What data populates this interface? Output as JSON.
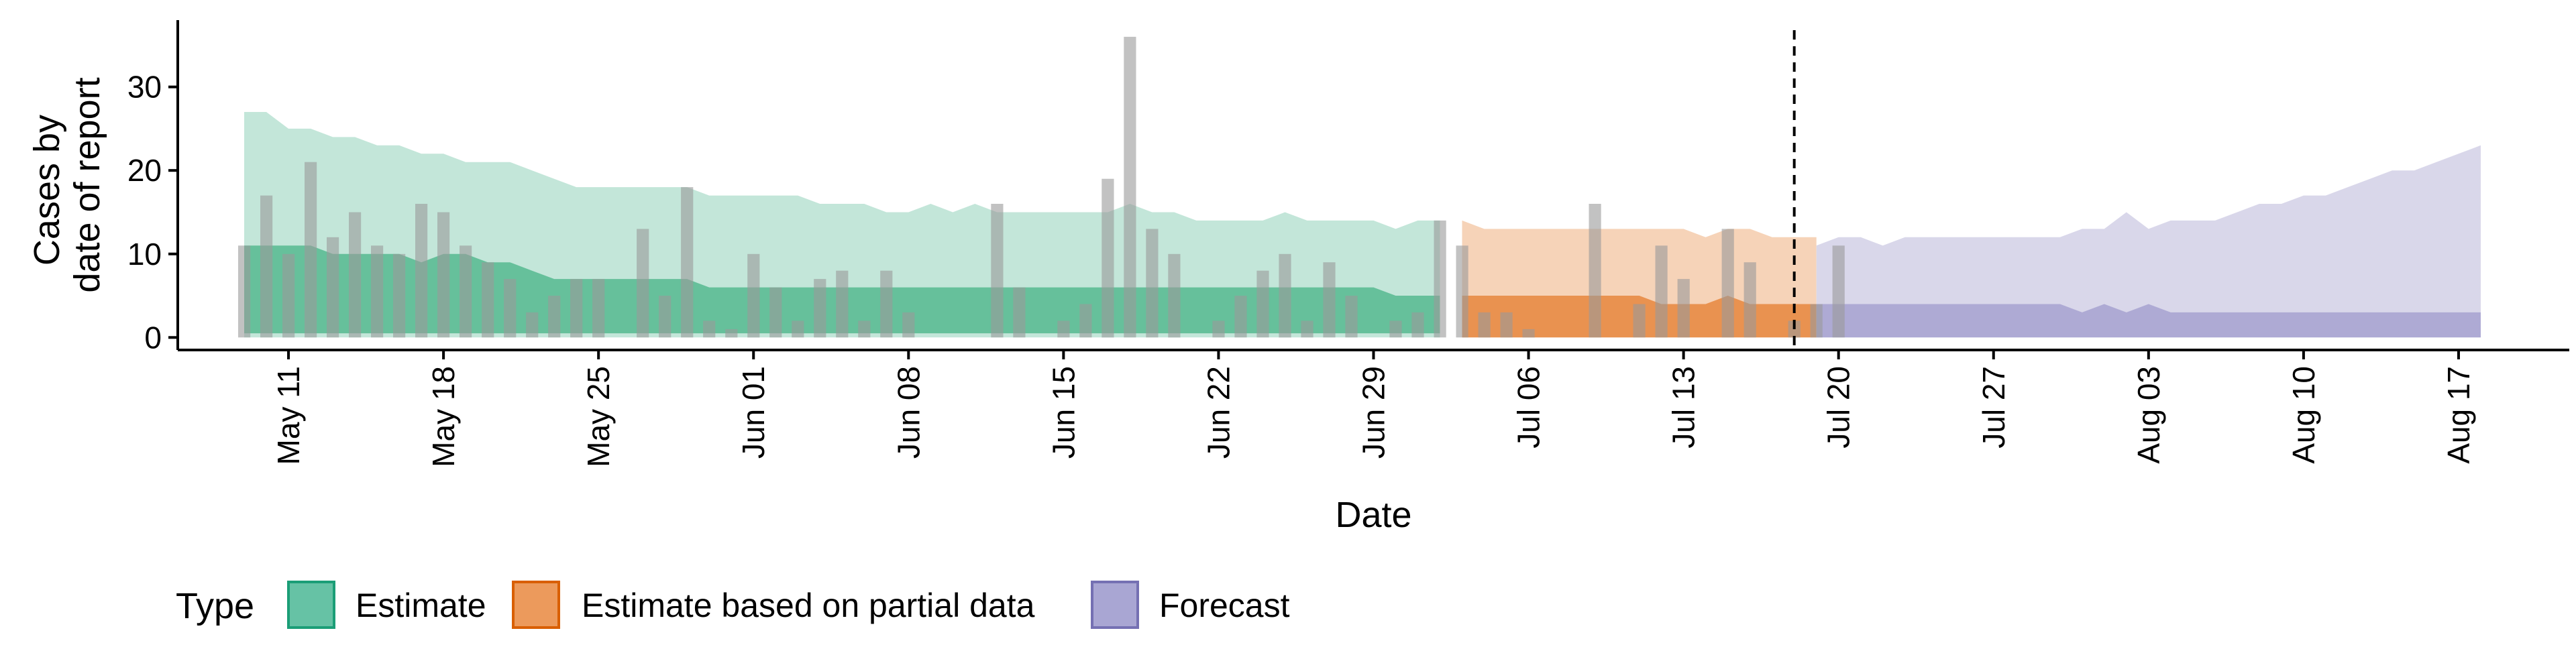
{
  "chart_data": {
    "type": "area",
    "xlabel": "Date",
    "ylabel": [
      "Cases by",
      "date of report"
    ],
    "ylim": [
      -1.5,
      38
    ],
    "xlim": [
      "2020-05-06",
      "2020-08-22"
    ],
    "y_ticks": [
      0,
      10,
      20,
      30
    ],
    "x_ticks": [
      {
        "date": "2020-05-11",
        "label": "May 11"
      },
      {
        "date": "2020-05-18",
        "label": "May 18"
      },
      {
        "date": "2020-05-25",
        "label": "May 25"
      },
      {
        "date": "2020-06-01",
        "label": "Jun 01"
      },
      {
        "date": "2020-06-08",
        "label": "Jun 08"
      },
      {
        "date": "2020-06-15",
        "label": "Jun 15"
      },
      {
        "date": "2020-06-22",
        "label": "Jun 22"
      },
      {
        "date": "2020-06-29",
        "label": "Jun 29"
      },
      {
        "date": "2020-07-06",
        "label": "Jul 06"
      },
      {
        "date": "2020-07-13",
        "label": "Jul 13"
      },
      {
        "date": "2020-07-20",
        "label": "Jul 20"
      },
      {
        "date": "2020-07-27",
        "label": "Jul 27"
      },
      {
        "date": "2020-08-03",
        "label": "Aug 03"
      },
      {
        "date": "2020-08-10",
        "label": "Aug 10"
      },
      {
        "date": "2020-08-17",
        "label": "Aug 17"
      }
    ],
    "vline_date": "2020-07-18",
    "grid": false,
    "legend": {
      "title": "Type",
      "placement": "bottom",
      "entries": [
        {
          "name": "Estimate",
          "fill": "#66c2a5",
          "stroke": "#1b9e77"
        },
        {
          "name": "Estimate based on partial data",
          "fill": "#ec9a5c",
          "stroke": "#d95f02"
        },
        {
          "name": "Forecast",
          "fill": "#a9a6d3",
          "stroke": "#7570b3"
        }
      ]
    },
    "colors": {
      "estimate_outer": "#c3e6d9",
      "estimate_inner": "#5cbb94",
      "partial_outer": "#f6d3b8",
      "partial_inner": "#e88b45",
      "forecast_outer": "#d9d7ea",
      "forecast_inner": "#a8a5d2",
      "observed_bar": "#9a9a9a",
      "vline": "#000000"
    },
    "observed_cases": {
      "start": "2020-05-09",
      "values": [
        11,
        17,
        10,
        21,
        12,
        15,
        11,
        10,
        16,
        15,
        11,
        9,
        7,
        3,
        5,
        7,
        7,
        0,
        13,
        5,
        18,
        2,
        1,
        10,
        6,
        2,
        7,
        8,
        2,
        8,
        3,
        0,
        0,
        0,
        16,
        6,
        0,
        2,
        4,
        19,
        36,
        13,
        10,
        0,
        2,
        5,
        8,
        10,
        2,
        9,
        5,
        0,
        2,
        3,
        14,
        11,
        3,
        3,
        1,
        0,
        0,
        16,
        0,
        4,
        11,
        7,
        0,
        13,
        9,
        0,
        2,
        4,
        11
      ]
    },
    "series": [
      {
        "name": "Estimate",
        "start": "2020-05-09",
        "upper_90": [
          27,
          27,
          25,
          25,
          24,
          24,
          23,
          23,
          22,
          22,
          21,
          21,
          21,
          20,
          19,
          18,
          18,
          18,
          18,
          18,
          18,
          17,
          17,
          17,
          17,
          17,
          16,
          16,
          16,
          15,
          15,
          16,
          15,
          16,
          15,
          15,
          15,
          15,
          15,
          15,
          16,
          15,
          15,
          14,
          14,
          14,
          14,
          15,
          14,
          14,
          14,
          14,
          13,
          14,
          14
        ],
        "lower_90": [
          0,
          0,
          0,
          0,
          0,
          0,
          0,
          0,
          0,
          0,
          0,
          0,
          0,
          0,
          0,
          0,
          0,
          0,
          0,
          0,
          0,
          0,
          0,
          0,
          0,
          0,
          0,
          0,
          0,
          0,
          0,
          0,
          0,
          0,
          0,
          0,
          0,
          0,
          0,
          0,
          0,
          0,
          0,
          0,
          0,
          0,
          0,
          0,
          0,
          0,
          0,
          0,
          0,
          0,
          0
        ],
        "upper_50": [
          11,
          11,
          11,
          11,
          10,
          10,
          10,
          10,
          9,
          10,
          10,
          9,
          9,
          8,
          7,
          7,
          7,
          7,
          7,
          7,
          7,
          6,
          6,
          6,
          6,
          6,
          6,
          6,
          6,
          6,
          6,
          6,
          6,
          6,
          6,
          6,
          6,
          6,
          6,
          6,
          6,
          6,
          6,
          6,
          6,
          6,
          6,
          6,
          6,
          6,
          6,
          6,
          5,
          5,
          5
        ],
        "lower_50": [
          0.5,
          0.5,
          0.5,
          0.5,
          0.5,
          0.5,
          0.5,
          0.5,
          0.5,
          0.5,
          0.5,
          0.5,
          0.5,
          0.5,
          0.5,
          0.5,
          0.5,
          0.5,
          0.5,
          0.5,
          0.5,
          0.5,
          0.5,
          0.5,
          0.5,
          0.5,
          0.5,
          0.5,
          0.5,
          0.5,
          0.5,
          0.5,
          0.5,
          0.5,
          0.5,
          0.5,
          0.5,
          0.5,
          0.5,
          0.5,
          0.5,
          0.5,
          0.5,
          0.5,
          0.5,
          0.5,
          0.5,
          0.5,
          0.5,
          0.5,
          0.5,
          0.5,
          0.5,
          0.5,
          0.5
        ]
      },
      {
        "name": "Estimate based on partial data",
        "start": "2020-07-03",
        "upper_90": [
          14,
          13,
          13,
          13,
          13,
          13,
          13,
          13,
          13,
          13,
          13,
          12,
          13,
          13,
          12,
          12,
          12
        ],
        "lower_90": [
          0,
          0,
          0,
          0,
          0,
          0,
          0,
          0,
          0,
          0,
          0,
          0,
          0,
          0,
          0,
          0,
          0
        ],
        "upper_50": [
          5,
          5,
          5,
          5,
          5,
          5,
          5,
          5,
          5,
          4,
          4,
          4,
          5,
          4,
          4,
          4,
          4
        ],
        "lower_50": [
          0,
          0,
          0,
          0,
          0,
          0,
          0,
          0,
          0,
          0,
          0,
          0,
          0,
          0,
          0,
          0,
          0
        ]
      },
      {
        "name": "Forecast",
        "start": "2020-07-19",
        "upper_90": [
          11,
          12,
          12,
          11,
          12,
          12,
          12,
          12,
          12,
          12,
          12,
          12,
          13,
          13,
          15,
          13,
          14,
          14,
          14,
          15,
          16,
          16,
          17,
          17,
          18,
          19,
          20,
          20,
          21,
          22,
          23
        ],
        "lower_90": [
          0,
          0,
          0,
          0,
          0,
          0,
          0,
          0,
          0,
          0,
          0,
          0,
          0,
          0,
          0,
          0,
          0,
          0,
          0,
          0,
          0,
          0,
          0,
          0,
          0,
          0,
          0,
          0,
          0,
          0,
          0
        ],
        "upper_50": [
          4,
          4,
          4,
          4,
          4,
          4,
          4,
          4,
          4,
          4,
          4,
          4,
          3,
          4,
          3,
          4,
          3,
          3,
          3,
          3,
          3,
          3,
          3,
          3,
          3,
          3,
          3,
          3,
          3,
          3,
          3
        ],
        "lower_50": [
          0,
          0,
          0,
          0,
          0,
          0,
          0,
          0,
          0,
          0,
          0,
          0,
          0,
          0,
          0,
          0,
          0,
          0,
          0,
          0,
          0,
          0,
          0,
          0,
          0,
          0,
          0,
          0,
          0,
          0,
          0
        ]
      }
    ]
  }
}
